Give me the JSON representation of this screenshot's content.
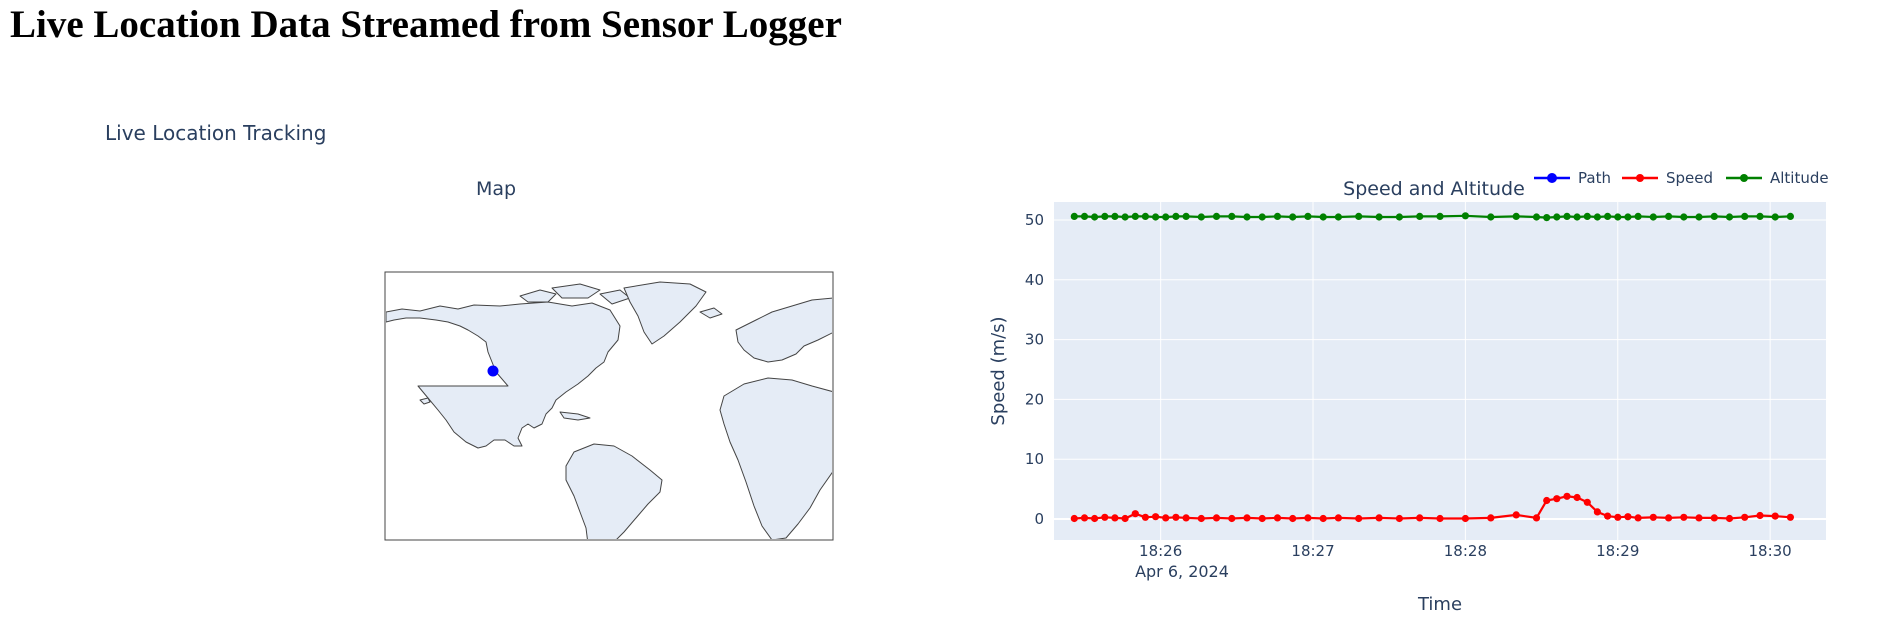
{
  "page": {
    "title": "Live Location Data Streamed from Sensor Logger"
  },
  "figure": {
    "title": "Live Location Tracking",
    "map_subplot_title": "Map",
    "chart_subplot_title": "Speed and Altitude",
    "map": {
      "projection": "natural-earth",
      "land_color": "#e5ecf6",
      "coast_color": "#444444",
      "marker_color": "#0000ff",
      "marker": {
        "lat": 37.4,
        "lon": -122.1
      }
    },
    "legend": [
      {
        "name": "Path",
        "color": "#0000ff"
      },
      {
        "name": "Speed",
        "color": "#ff0000"
      },
      {
        "name": "Altitude",
        "color": "#008000"
      }
    ],
    "colors": {
      "plot_bg": "#e5ecf6",
      "grid": "#ffffff",
      "axis_text": "#2a3f5f"
    }
  },
  "chart_data": {
    "type": "line",
    "title": "Speed and Altitude",
    "xlabel": "Time",
    "ylabel": "Speed (m/s)",
    "x_ticks": [
      "18:26",
      "18:27",
      "18:28",
      "18:29",
      "18:30"
    ],
    "x_date_label": "Apr 6, 2024",
    "y_ticks": [
      0,
      10,
      20,
      30,
      40,
      50
    ],
    "ylim": [
      -3.5,
      53
    ],
    "grid": true,
    "legend_position": "top-right",
    "series": [
      {
        "name": "Speed",
        "color": "#ff0000",
        "x": [
          "18:25:26",
          "18:25:30",
          "18:25:34",
          "18:25:38",
          "18:25:42",
          "18:25:46",
          "18:25:50",
          "18:25:54",
          "18:25:58",
          "18:26:02",
          "18:26:06",
          "18:26:10",
          "18:26:16",
          "18:26:22",
          "18:26:28",
          "18:26:34",
          "18:26:40",
          "18:26:46",
          "18:26:52",
          "18:26:58",
          "18:27:04",
          "18:27:10",
          "18:27:18",
          "18:27:26",
          "18:27:34",
          "18:27:42",
          "18:27:50",
          "18:28:00",
          "18:28:10",
          "18:28:20",
          "18:28:28",
          "18:28:32",
          "18:28:36",
          "18:28:40",
          "18:28:44",
          "18:28:48",
          "18:28:52",
          "18:28:56",
          "18:29:00",
          "18:29:04",
          "18:29:08",
          "18:29:14",
          "18:29:20",
          "18:29:26",
          "18:29:32",
          "18:29:38",
          "18:29:44",
          "18:29:50",
          "18:29:56",
          "18:30:02",
          "18:30:08"
        ],
        "y": [
          0.1,
          0.2,
          0.1,
          0.3,
          0.2,
          0.1,
          0.9,
          0.3,
          0.4,
          0.2,
          0.3,
          0.2,
          0.1,
          0.2,
          0.1,
          0.2,
          0.1,
          0.2,
          0.1,
          0.2,
          0.1,
          0.2,
          0.1,
          0.2,
          0.1,
          0.2,
          0.1,
          0.1,
          0.2,
          0.7,
          0.2,
          3.1,
          3.4,
          3.8,
          3.6,
          2.8,
          1.2,
          0.5,
          0.3,
          0.4,
          0.2,
          0.3,
          0.2,
          0.3,
          0.2,
          0.2,
          0.1,
          0.3,
          0.6,
          0.5,
          0.3
        ]
      },
      {
        "name": "Altitude",
        "color": "#008000",
        "x": [
          "18:25:26",
          "18:25:30",
          "18:25:34",
          "18:25:38",
          "18:25:42",
          "18:25:46",
          "18:25:50",
          "18:25:54",
          "18:25:58",
          "18:26:02",
          "18:26:06",
          "18:26:10",
          "18:26:16",
          "18:26:22",
          "18:26:28",
          "18:26:34",
          "18:26:40",
          "18:26:46",
          "18:26:52",
          "18:26:58",
          "18:27:04",
          "18:27:10",
          "18:27:18",
          "18:27:26",
          "18:27:34",
          "18:27:42",
          "18:27:50",
          "18:28:00",
          "18:28:10",
          "18:28:20",
          "18:28:28",
          "18:28:32",
          "18:28:36",
          "18:28:40",
          "18:28:44",
          "18:28:48",
          "18:28:52",
          "18:28:56",
          "18:29:00",
          "18:29:04",
          "18:29:08",
          "18:29:14",
          "18:29:20",
          "18:29:26",
          "18:29:32",
          "18:29:38",
          "18:29:44",
          "18:29:50",
          "18:29:56",
          "18:30:02",
          "18:30:08"
        ],
        "y": [
          50.6,
          50.6,
          50.5,
          50.6,
          50.6,
          50.5,
          50.6,
          50.6,
          50.5,
          50.5,
          50.6,
          50.6,
          50.5,
          50.6,
          50.6,
          50.5,
          50.5,
          50.6,
          50.5,
          50.6,
          50.5,
          50.5,
          50.6,
          50.5,
          50.5,
          50.6,
          50.6,
          50.7,
          50.5,
          50.6,
          50.5,
          50.4,
          50.5,
          50.6,
          50.5,
          50.6,
          50.5,
          50.6,
          50.5,
          50.5,
          50.6,
          50.5,
          50.6,
          50.5,
          50.5,
          50.6,
          50.5,
          50.6,
          50.6,
          50.5,
          50.6
        ]
      }
    ]
  }
}
